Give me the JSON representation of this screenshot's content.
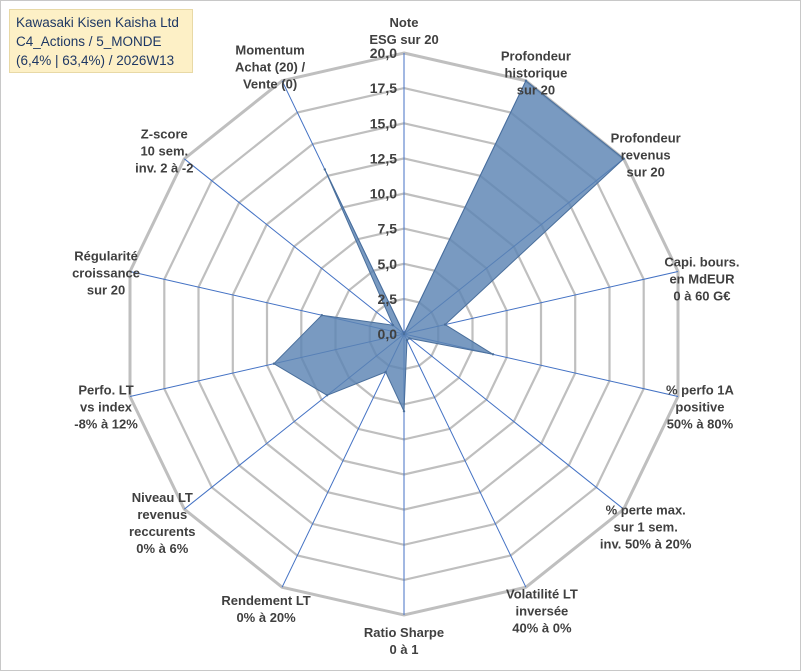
{
  "title": {
    "company": "Kawasaki Kisen Kaisha Ltd",
    "segment": "C4_Actions / 5_MONDE",
    "detail": "(6,4% | 63,4%) / 2026W13"
  },
  "chart_data": {
    "type": "radar",
    "scale": {
      "min": 0,
      "max": 20,
      "step": 2.5
    },
    "tick_labels": [
      "0,0",
      "2,5",
      "5,0",
      "7,5",
      "10,0",
      "12,5",
      "15,0",
      "17,5",
      "20,0"
    ],
    "axes": [
      {
        "lines": [
          "Note",
          "ESG sur 20"
        ]
      },
      {
        "lines": [
          "Profondeur",
          "historique",
          "sur 20"
        ]
      },
      {
        "lines": [
          "Profondeur",
          "revenus",
          "sur 20"
        ]
      },
      {
        "lines": [
          "Capi. bours.",
          "en MdEUR",
          "0 à 60 G€"
        ]
      },
      {
        "lines": [
          "% perfo 1A",
          "positive",
          "50% à 80%"
        ]
      },
      {
        "lines": [
          "% perte max.",
          "sur 1 sem.",
          "inv. 50% à 20%"
        ]
      },
      {
        "lines": [
          "Volatilité LT",
          "inversée",
          "40% à 0%"
        ]
      },
      {
        "lines": [
          "Ratio Sharpe",
          "0 à 1"
        ]
      },
      {
        "lines": [
          "Rendement LT",
          "0% à 20%"
        ]
      },
      {
        "lines": [
          "Niveau LT",
          "revenus",
          "reccurents",
          "0% à 6%"
        ]
      },
      {
        "lines": [
          "Perfo. LT",
          "vs index",
          "-8% à 12%"
        ]
      },
      {
        "lines": [
          "Régularité",
          "croissance",
          "sur 20"
        ]
      },
      {
        "lines": [
          "Z-score",
          "10 sem.",
          "inv. 2 à -2"
        ]
      },
      {
        "lines": [
          "Momentum",
          "Achat (20) /",
          "Vente (0)"
        ]
      }
    ],
    "series": [
      {
        "name": "Kawasaki Kisen Kaisha Ltd",
        "values": [
          0,
          20,
          20,
          3,
          6.5,
          0.5,
          0.5,
          5.5,
          3,
          7,
          9.5,
          6,
          1,
          13
        ],
        "color": "#5b84b3"
      }
    ],
    "colors": {
      "grid": "#bfbfbf",
      "spokes": "#4472c4",
      "fill": "#5b84b3",
      "title_bg": "#fdf0c6",
      "title_text": "#1f3864",
      "label_text": "#404040"
    }
  }
}
